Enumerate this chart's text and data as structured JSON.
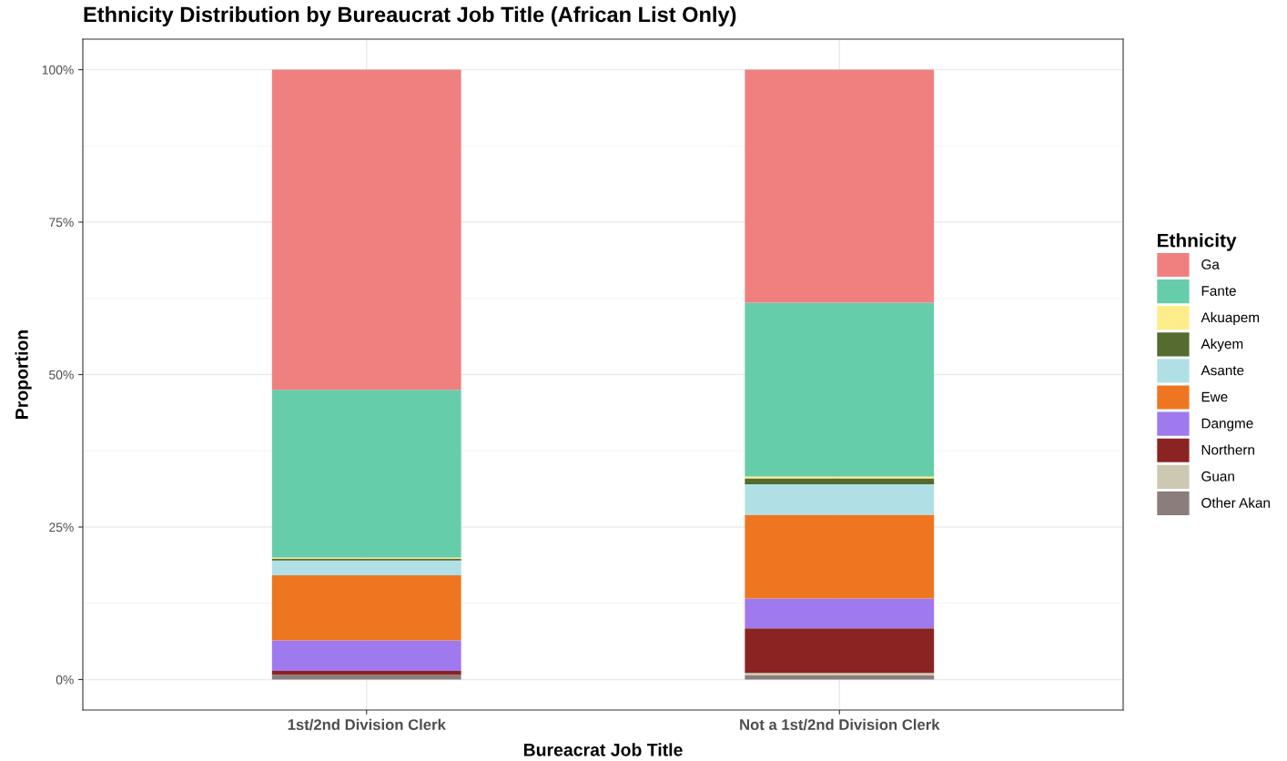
{
  "chart_data": {
    "type": "bar",
    "stacked": true,
    "title": "Ethnicity Distribution by Bureaucrat Job Title (African List Only)",
    "xlabel": "Bureacrat Job Title",
    "ylabel": "Proportion",
    "legend_title": "Ethnicity",
    "categories": [
      "1st/2nd Division Clerk",
      "Not a 1st/2nd Division Clerk"
    ],
    "series": [
      {
        "name": "Other Akan",
        "color": "#8b7d7b",
        "values": [
          0.008,
          0.007
        ]
      },
      {
        "name": "Guan",
        "color": "#cdc8b1",
        "values": [
          0.0,
          0.004
        ]
      },
      {
        "name": "Northern",
        "color": "#8b2323",
        "values": [
          0.006,
          0.073
        ]
      },
      {
        "name": "Dangme",
        "color": "#9f79ee",
        "values": [
          0.05,
          0.049
        ]
      },
      {
        "name": "Ewe",
        "color": "#ee7621",
        "values": [
          0.107,
          0.137
        ]
      },
      {
        "name": "Asante",
        "color": "#b0e0e6",
        "values": [
          0.024,
          0.05
        ]
      },
      {
        "name": "Akyem",
        "color": "#556b2f",
        "values": [
          0.003,
          0.01
        ]
      },
      {
        "name": "Akuapem",
        "color": "#ffec8b",
        "values": [
          0.002,
          0.003
        ]
      },
      {
        "name": "Fante",
        "color": "#66cdaa",
        "values": [
          0.275,
          0.285
        ]
      },
      {
        "name": "Ga",
        "color": "#f08080",
        "values": [
          0.525,
          0.382
        ]
      }
    ],
    "ylim": [
      -0.05,
      1.05
    ],
    "yticks": [
      {
        "value": 0,
        "label": "0%"
      },
      {
        "value": 0.25,
        "label": "25%"
      },
      {
        "value": 0.5,
        "label": "50%"
      },
      {
        "value": 0.75,
        "label": "75%"
      },
      {
        "value": 1.0,
        "label": "100%"
      }
    ],
    "grid": true,
    "legend": "right"
  }
}
